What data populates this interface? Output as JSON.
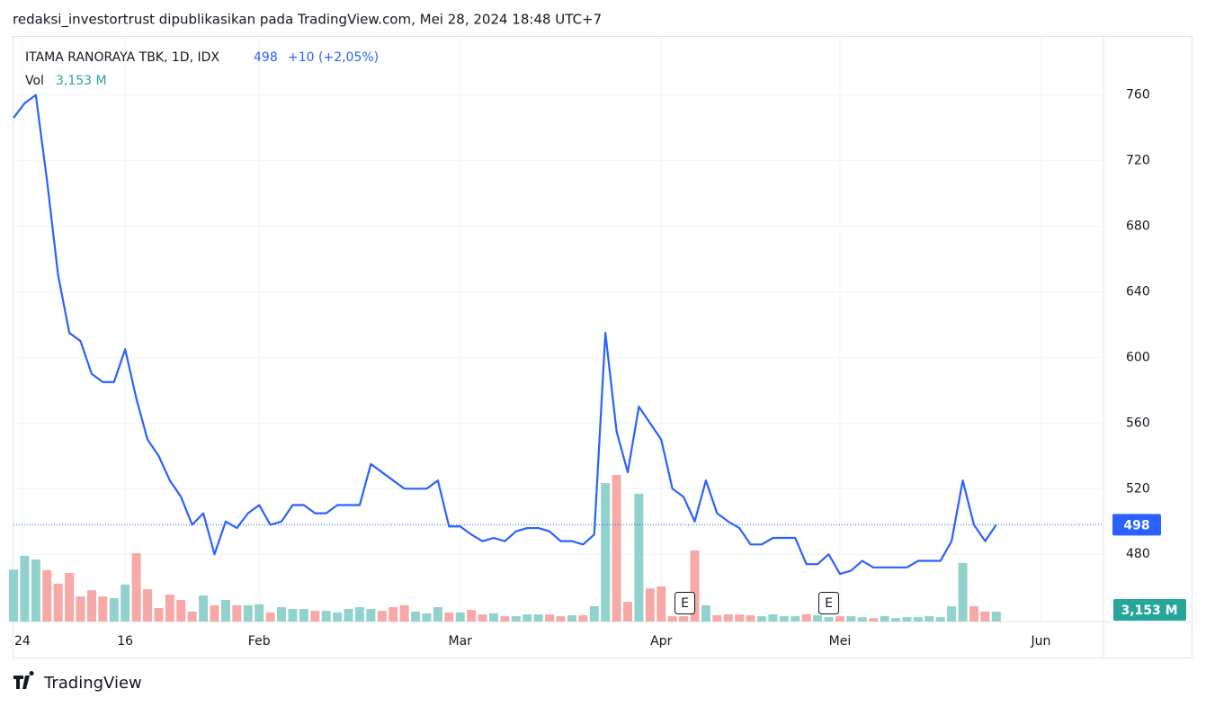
{
  "attribution": "redaksi_investortrust dipublikasikan pada TradingView.com, Mei 28, 2024 18:48 UTC+7",
  "brand": "TradingView",
  "chart_data": {
    "type": "line",
    "title": "ITAMA RANORAYA TBK, 1D, IDX",
    "change": "+10 (+2,05%)",
    "series": [
      {
        "name": "ITAMA RANORAYA TBK, 1D, IDX",
        "color": "#2962ff",
        "values": [
          746,
          755,
          760,
          708,
          650,
          615,
          610,
          590,
          585,
          585,
          605,
          575,
          550,
          540,
          525,
          515,
          498,
          505,
          480,
          500,
          496,
          505,
          510,
          498,
          500,
          510,
          510,
          505,
          505,
          510,
          510,
          510,
          535,
          530,
          525,
          520,
          520,
          520,
          525,
          497,
          497,
          492,
          488,
          490,
          488,
          494,
          496,
          496,
          494,
          488,
          488,
          486,
          492,
          615,
          555,
          530,
          570,
          560,
          550,
          520,
          515,
          500,
          525,
          505,
          500,
          496,
          486,
          486,
          490,
          490,
          490,
          474,
          474,
          480,
          468,
          470,
          476,
          472,
          472,
          472,
          472,
          476,
          476,
          476,
          488,
          525,
          498,
          488,
          498
        ]
      }
    ],
    "volume": {
      "name": "Vol",
      "up_color": "#92d2cc",
      "down_color": "#f7a9a7",
      "label_color": "#26a69a",
      "volume_label": "3,153 M",
      "values": [
        16.6,
        21,
        19.8,
        16.4,
        12.1,
        15.5,
        8,
        10,
        8,
        7.5,
        11.8,
        21.8,
        10.3,
        4.3,
        8.6,
        6.9,
        3.2,
        8.3,
        5.2,
        6.9,
        5.2,
        5.2,
        5.5,
        2.9,
        4.6,
        4,
        4,
        3.4,
        3.4,
        2.9,
        4,
        4.6,
        4,
        3.4,
        4.6,
        5.2,
        3.2,
        2.6,
        4.6,
        2.9,
        2.9,
        3.7,
        2.3,
        2.6,
        1.7,
        1.7,
        2.3,
        2.3,
        2.3,
        1.7,
        2,
        2,
        4.9,
        44.2,
        46.8,
        6.3,
        40.8,
        10.6,
        11.2,
        1.7,
        1.7,
        22.7,
        5.2,
        2,
        2.3,
        2.3,
        2,
        1.7,
        2.3,
        1.7,
        1.7,
        2.3,
        2,
        1.4,
        1.7,
        1.7,
        1.4,
        1.1,
        1.7,
        1.1,
        1.4,
        1.4,
        1.7,
        1.4,
        4.9,
        18.7,
        4.9,
        3.2,
        3.153
      ]
    },
    "events": [
      "E",
      "E"
    ],
    "xlim": [
      0,
      97.6
    ],
    "xticks": [
      {
        "value": 0.8,
        "label": "24"
      },
      {
        "value": 10,
        "label": "16"
      },
      {
        "value": 22,
        "label": "Feb"
      },
      {
        "value": 40,
        "label": "Mar"
      },
      {
        "value": 58,
        "label": "Apr"
      },
      {
        "value": 74,
        "label": "Mei"
      },
      {
        "value": 92,
        "label": "Jun"
      }
    ],
    "ylim": [
      439,
      796
    ],
    "yticks": [
      480,
      520,
      560,
      600,
      640,
      680,
      720,
      760
    ],
    "grid": true
  }
}
